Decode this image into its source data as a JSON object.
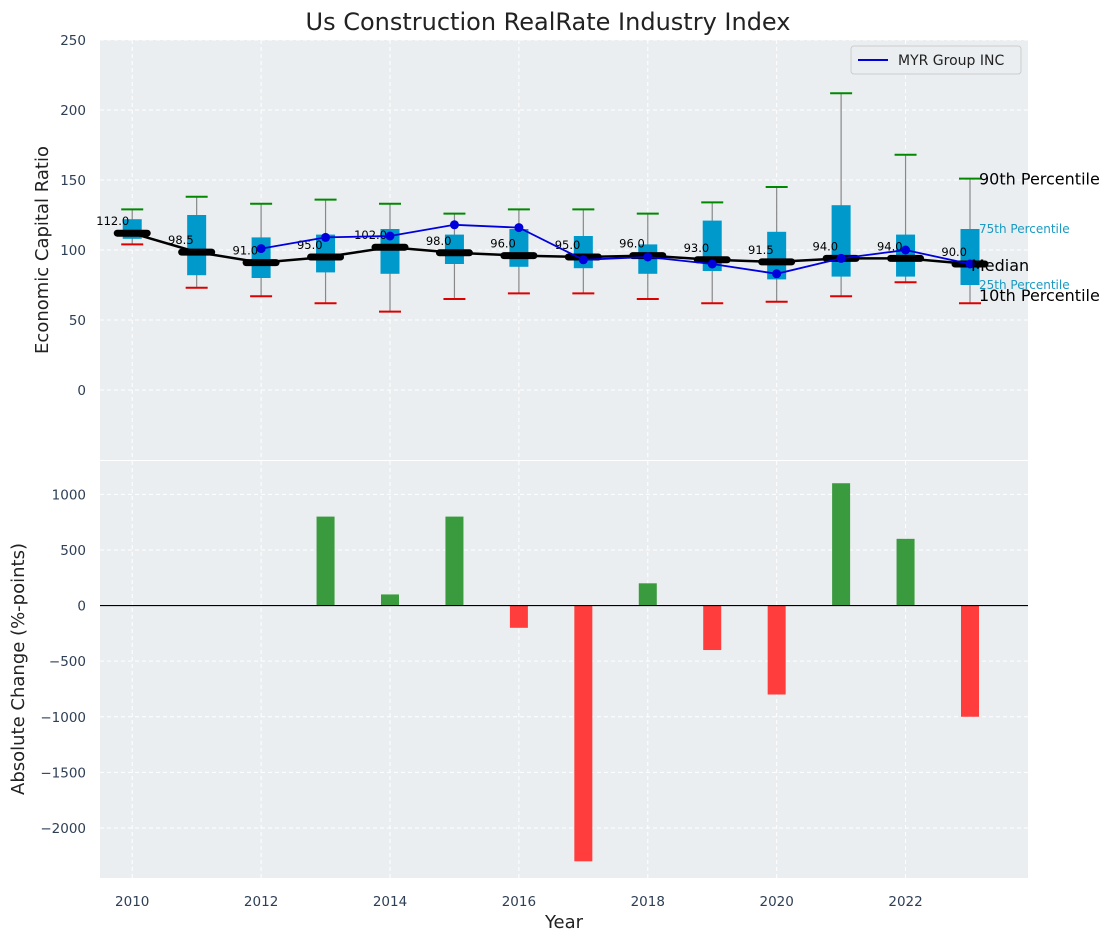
{
  "chart_data": [
    {
      "type": "box",
      "title": "Us Construction RealRate Industry Index",
      "xlabel": "",
      "ylabel": "Economic Capital Ratio",
      "ylim": [
        -50,
        250
      ],
      "yticks": [
        0,
        50,
        100,
        150,
        200,
        250
      ],
      "xlim": [
        2009.5,
        2023.9
      ],
      "grid": true,
      "legend": {
        "position": "top-right",
        "entries": [
          "MYR Group INC"
        ]
      },
      "years": [
        2010,
        2011,
        2012,
        2013,
        2014,
        2015,
        2016,
        2017,
        2018,
        2019,
        2020,
        2021,
        2022,
        2023
      ],
      "p10": [
        104,
        73,
        67,
        62,
        56,
        65,
        69,
        69,
        65,
        62,
        63,
        67,
        77,
        62
      ],
      "p25": [
        108,
        82,
        80,
        84,
        83,
        90,
        88,
        87,
        83,
        85,
        79,
        81,
        81,
        75
      ],
      "median": [
        112,
        98.5,
        91,
        95,
        102,
        98,
        96,
        95,
        96,
        93,
        91.5,
        94,
        94,
        90
      ],
      "median_labels": [
        "112.0",
        "98.5",
        "91.0",
        "95.0",
        "102.0",
        "98.0",
        "96.0",
        "95.0",
        "96.0",
        "93.0",
        "91.5",
        "94.0",
        "94.0",
        "90.0"
      ],
      "p75": [
        122,
        125,
        109,
        111,
        115,
        111,
        115,
        110,
        104,
        121,
        113,
        132,
        111,
        115
      ],
      "p90": [
        129,
        138,
        133,
        136,
        133,
        126,
        129,
        129,
        126,
        134,
        145,
        212,
        168,
        151
      ],
      "series": [
        {
          "name": "MYR Group INC",
          "color": "#0000dd",
          "values": [
            null,
            null,
            101,
            109,
            110,
            118,
            116,
            93,
            95,
            90,
            83,
            94,
            100,
            90
          ]
        }
      ],
      "annotations": {
        "p90": "90th Percentile",
        "p75": "75th Percentile",
        "median": "Median",
        "p25": "25th Percentile",
        "p10": "10th Percentile"
      }
    },
    {
      "type": "bar",
      "xlabel": "Year",
      "ylabel": "Absolute Change (%-points)",
      "ylim": [
        -2450,
        1300
      ],
      "yticks": [
        -2000,
        -1500,
        -1000,
        -500,
        0,
        500,
        1000
      ],
      "ytick_labels": [
        "−2000",
        "−1500",
        "−1000",
        "−500",
        "0",
        "500",
        "1000"
      ],
      "xticks": [
        2010,
        2012,
        2014,
        2016,
        2018,
        2020,
        2022
      ],
      "categories": [
        2010,
        2011,
        2012,
        2013,
        2014,
        2015,
        2016,
        2017,
        2018,
        2019,
        2020,
        2021,
        2022,
        2023
      ],
      "values": [
        0,
        0,
        0,
        800,
        100,
        800,
        -200,
        -2300,
        200,
        -400,
        -800,
        1100,
        600,
        -1000
      ],
      "positive_color": "#3a9a3e",
      "negative_color": "#ff3d3d"
    }
  ]
}
